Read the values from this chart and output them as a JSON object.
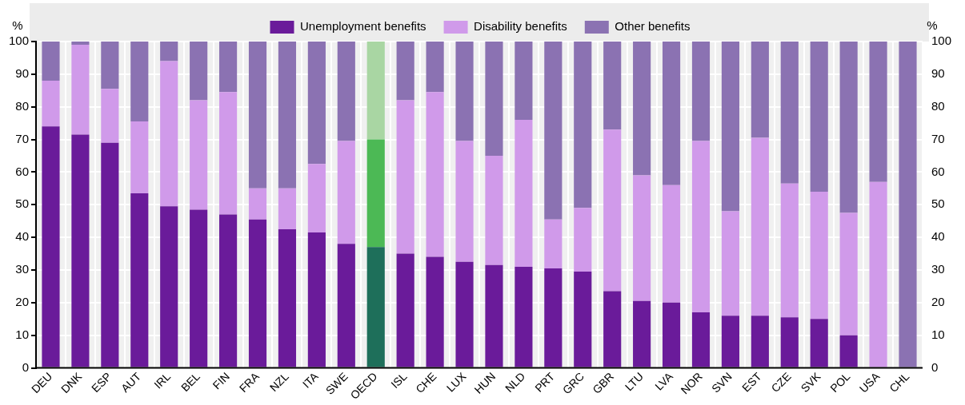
{
  "chart_data": {
    "type": "bar",
    "stacked": true,
    "categories": [
      "DEU",
      "DNK",
      "ESP",
      "AUT",
      "IRL",
      "BEL",
      "FIN",
      "FRA",
      "NZL",
      "ITA",
      "SWE",
      "OECD",
      "ISL",
      "CHE",
      "LUX",
      "HUN",
      "NLD",
      "PRT",
      "GRC",
      "GBR",
      "LTU",
      "LVA",
      "NOR",
      "SVN",
      "EST",
      "CZE",
      "SVK",
      "POL",
      "USA",
      "CHL"
    ],
    "series": [
      {
        "name": "Unemployment benefits",
        "color": "#6a1b9a",
        "colors": [
          "#6a1b9a",
          "#6a1b9a",
          "#6a1b9a",
          "#6a1b9a",
          "#6a1b9a",
          "#6a1b9a",
          "#6a1b9a",
          "#6a1b9a",
          "#6a1b9a",
          "#6a1b9a",
          "#6a1b9a",
          "#1e6f5a",
          "#6a1b9a",
          "#6a1b9a",
          "#6a1b9a",
          "#6a1b9a",
          "#6a1b9a",
          "#6a1b9a",
          "#6a1b9a",
          "#6a1b9a",
          "#6a1b9a",
          "#6a1b9a",
          "#6a1b9a",
          "#6a1b9a",
          "#6a1b9a",
          "#6a1b9a",
          "#6a1b9a",
          "#6a1b9a",
          "#6a1b9a",
          "#6a1b9a"
        ],
        "values": [
          74,
          71.5,
          69,
          53.5,
          49.5,
          48.5,
          47,
          45.5,
          42.5,
          41.5,
          38,
          37,
          35,
          34,
          32.5,
          31.5,
          31,
          30.5,
          29.5,
          23.5,
          20.5,
          20,
          17,
          16,
          16,
          15.5,
          15,
          10,
          0,
          0
        ]
      },
      {
        "name": "Disability benefits",
        "color": "#d09aea",
        "colors": [
          "#d09aea",
          "#d09aea",
          "#d09aea",
          "#d09aea",
          "#d09aea",
          "#d09aea",
          "#d09aea",
          "#d09aea",
          "#d09aea",
          "#d09aea",
          "#d09aea",
          "#4cb955",
          "#d09aea",
          "#d09aea",
          "#d09aea",
          "#d09aea",
          "#d09aea",
          "#d09aea",
          "#d09aea",
          "#d09aea",
          "#d09aea",
          "#d09aea",
          "#d09aea",
          "#d09aea",
          "#d09aea",
          "#d09aea",
          "#d09aea",
          "#d09aea",
          "#d09aea",
          "#d09aea"
        ],
        "values": [
          14,
          27.5,
          16.5,
          22,
          44.5,
          33.5,
          37.5,
          9.5,
          12.5,
          21,
          31.5,
          33,
          47,
          50.5,
          37,
          33.5,
          45,
          15,
          19.5,
          49.5,
          38.5,
          36,
          52.5,
          32,
          54.5,
          41,
          39,
          37.5,
          57,
          0
        ]
      },
      {
        "name": "Other benefits",
        "color": "#8b72b2",
        "colors": [
          "#8b72b2",
          "#8b72b2",
          "#8b72b2",
          "#8b72b2",
          "#8b72b2",
          "#8b72b2",
          "#8b72b2",
          "#8b72b2",
          "#8b72b2",
          "#8b72b2",
          "#8b72b2",
          "#a9d6a3",
          "#8b72b2",
          "#8b72b2",
          "#8b72b2",
          "#8b72b2",
          "#8b72b2",
          "#8b72b2",
          "#8b72b2",
          "#8b72b2",
          "#8b72b2",
          "#8b72b2",
          "#8b72b2",
          "#8b72b2",
          "#8b72b2",
          "#8b72b2",
          "#8b72b2",
          "#8b72b2",
          "#8b72b2",
          "#8b72b2"
        ],
        "values": [
          12,
          1,
          14.5,
          24.5,
          6,
          18,
          15.5,
          45,
          45,
          37.5,
          30.5,
          30,
          18,
          15.5,
          30.5,
          35,
          24,
          54.5,
          51,
          27,
          41,
          44,
          30.5,
          52,
          29.5,
          43.5,
          46,
          52.5,
          43,
          100
        ]
      }
    ],
    "ylabel": "%",
    "y2label": "%",
    "ylim": [
      0,
      100
    ],
    "yticks": [
      0,
      10,
      20,
      30,
      40,
      50,
      60,
      70,
      80,
      90,
      100
    ],
    "y2lim": [
      0,
      100
    ],
    "y2ticks": [
      0,
      10,
      20,
      30,
      40,
      50,
      60,
      70,
      80,
      90,
      100
    ],
    "grid": true,
    "legend": "top"
  }
}
